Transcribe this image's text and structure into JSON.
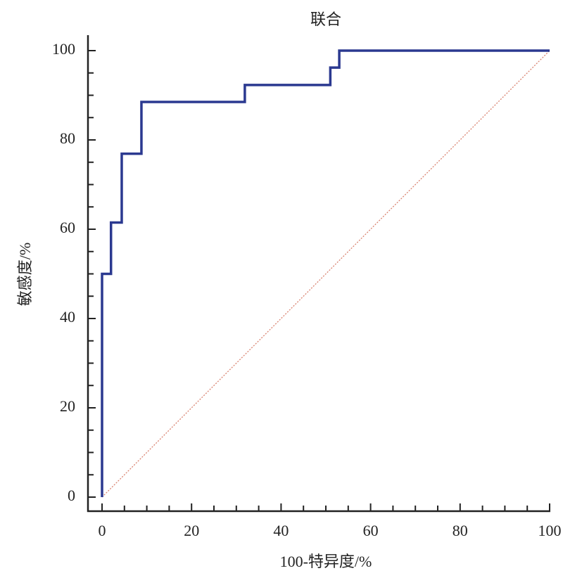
{
  "chart_data": {
    "type": "line",
    "title": "联合",
    "xlabel": "100-特异度/%",
    "ylabel": "敏感度/%",
    "xlim": [
      0,
      100
    ],
    "ylim": [
      0,
      100
    ],
    "xticks": [
      0,
      20,
      40,
      60,
      80,
      100
    ],
    "yticks": [
      0,
      20,
      40,
      60,
      80,
      100
    ],
    "minor_ticks": 4,
    "series": [
      {
        "color": "#2b3990",
        "x": [
          0,
          0,
          2,
          2,
          4.4,
          4.4,
          8.8,
          8.8,
          31.9,
          31.9,
          51,
          51,
          53,
          53,
          100
        ],
        "values": [
          0,
          50,
          50,
          61.5,
          61.5,
          76.9,
          76.9,
          88.5,
          88.5,
          92.3,
          92.3,
          96.2,
          96.2,
          100,
          100
        ]
      },
      {
        "color": "#d9826f",
        "dashed": true,
        "x": [
          0,
          100
        ],
        "values": [
          0,
          100
        ]
      }
    ]
  }
}
